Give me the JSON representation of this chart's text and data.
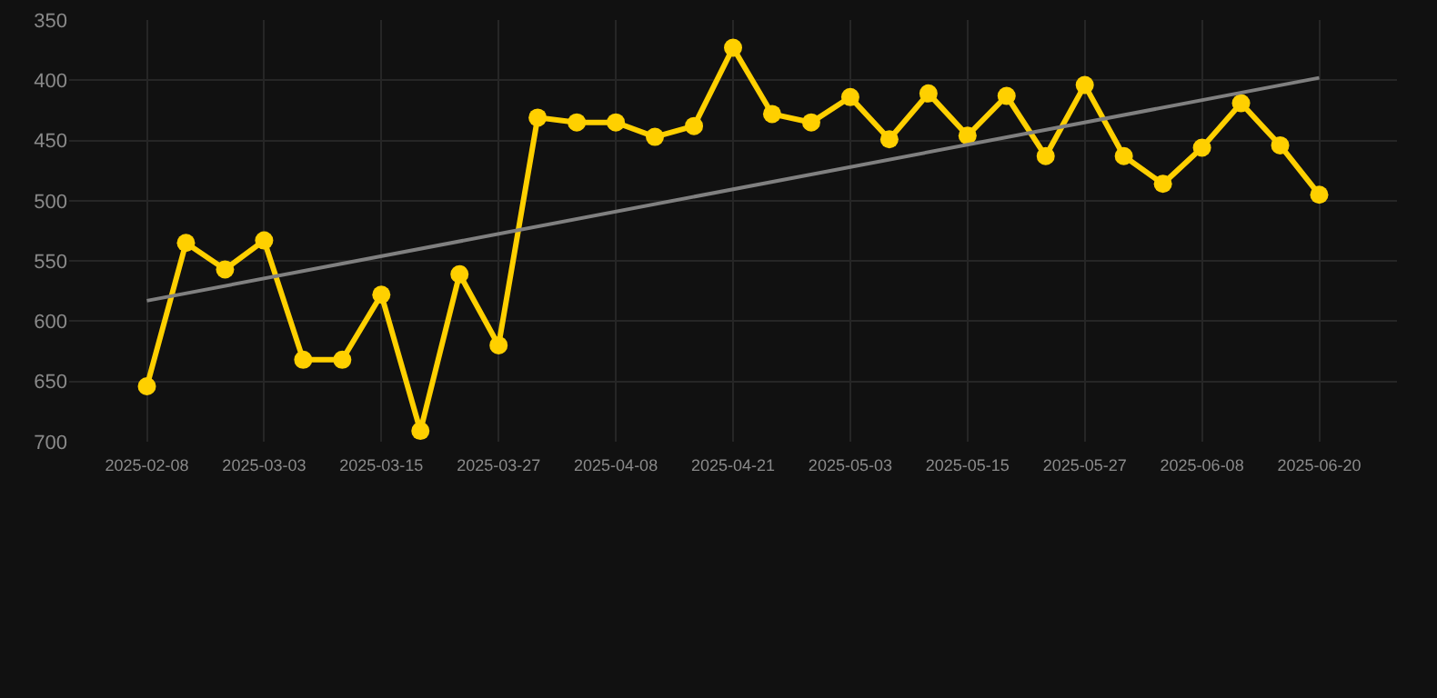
{
  "chart_data": {
    "type": "line",
    "categories": [
      "2025-02-08",
      null,
      null,
      "2025-03-03",
      null,
      null,
      "2025-03-15",
      null,
      null,
      "2025-03-27",
      null,
      null,
      "2025-04-08",
      null,
      null,
      "2025-04-21",
      null,
      null,
      "2025-05-03",
      null,
      null,
      "2025-05-15",
      null,
      null,
      "2025-05-27",
      null,
      null,
      "2025-06-08",
      null,
      null,
      "2025-06-20"
    ],
    "series": [
      {
        "color": "#ffd000",
        "marker": "circle",
        "values": [
          654,
          535,
          557,
          533,
          632,
          632,
          578,
          691,
          561,
          620,
          431,
          435,
          435,
          447,
          438,
          373,
          428,
          435,
          414,
          449,
          411,
          446,
          413,
          463,
          404,
          463,
          486,
          456,
          419,
          454,
          495
        ]
      },
      {
        "type": "line",
        "color": "#808080",
        "marker": "none",
        "values": [
          583,
          null,
          null,
          null,
          null,
          null,
          null,
          null,
          null,
          null,
          null,
          null,
          null,
          null,
          null,
          null,
          null,
          null,
          null,
          null,
          null,
          null,
          null,
          null,
          null,
          null,
          null,
          null,
          null,
          null,
          398
        ]
      }
    ],
    "ylim": [
      700,
      350
    ],
    "yticks": [
      350,
      400,
      450,
      500,
      550,
      600,
      650,
      700
    ],
    "grid": true
  }
}
